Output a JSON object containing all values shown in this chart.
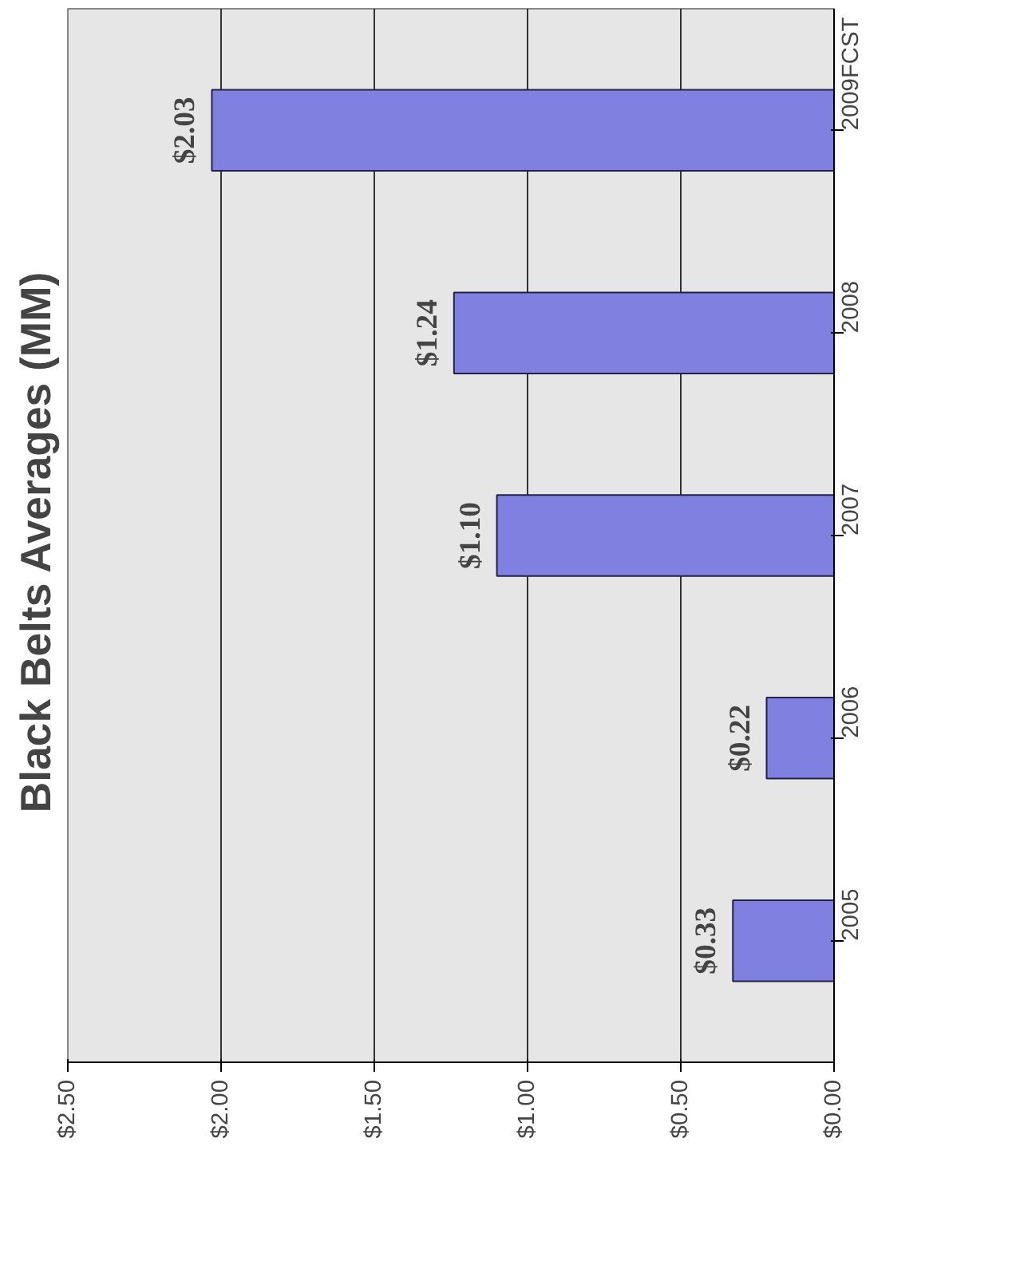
{
  "chart_data": {
    "type": "bar",
    "orientation": "horizontal",
    "title": "Black Belts  Averages (MM)",
    "categories": [
      "2009FCST",
      "2008",
      "2007",
      "2006",
      "2005"
    ],
    "values": [
      2.03,
      1.24,
      1.1,
      0.22,
      0.33
    ],
    "value_labels": [
      "$2.03",
      "$1.24",
      "$1.10",
      "$0.22",
      "$0.33"
    ],
    "color": "#8080e0",
    "xlim": [
      2.5,
      0
    ],
    "xticks": [
      {
        "value": 2.5,
        "label": "$2.50"
      },
      {
        "value": 2.0,
        "label": "$2.00"
      },
      {
        "value": 1.5,
        "label": "$1.50"
      },
      {
        "value": 1.0,
        "label": "$1.00"
      },
      {
        "value": 0.5,
        "label": "$0.50"
      },
      {
        "value": 0,
        "label": "$0.00"
      }
    ],
    "grid": "x"
  }
}
